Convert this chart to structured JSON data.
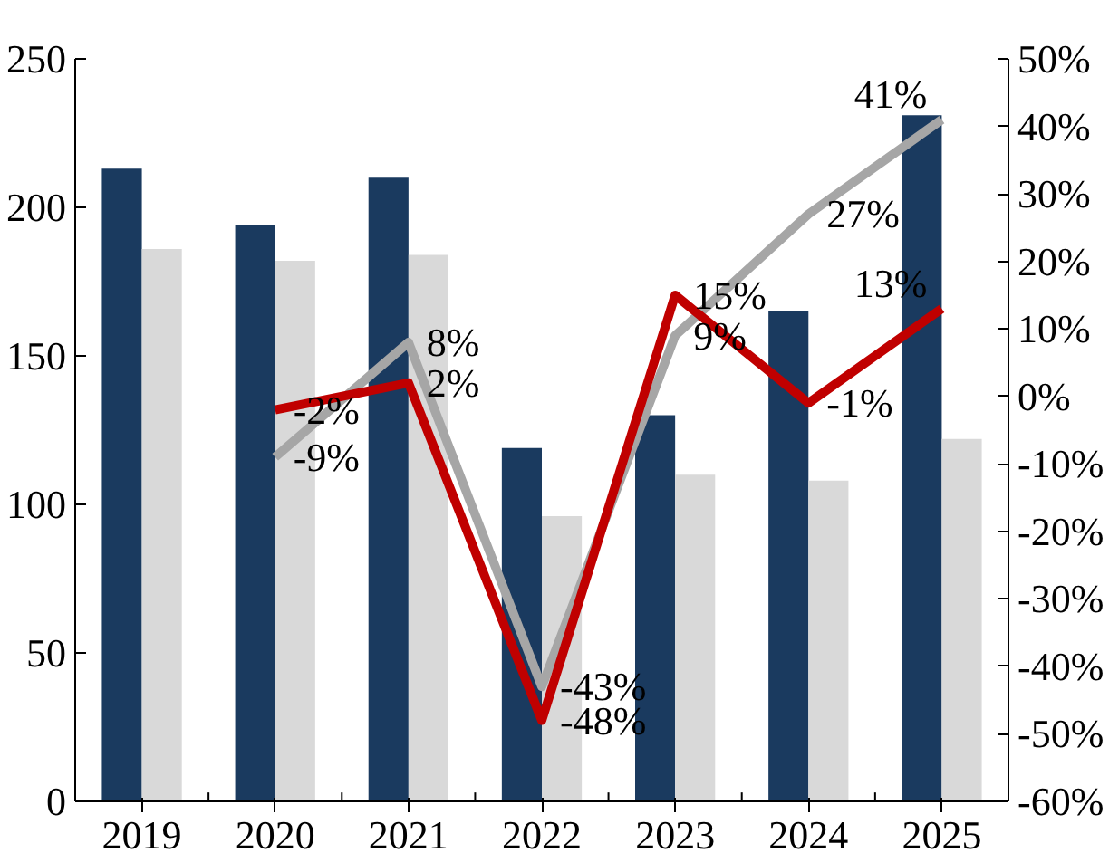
{
  "chart_data": {
    "type": "bar",
    "categories": [
      "2019",
      "2020",
      "2021",
      "2022",
      "2023",
      "2024",
      "2025"
    ],
    "series": [
      {
        "color": "#1a3a5f",
        "values": [
          213,
          194,
          210,
          119,
          130,
          165,
          231
        ]
      },
      {
        "color": "#d9d9d9",
        "values": [
          186,
          182,
          184,
          96,
          110,
          108,
          122
        ]
      },
      {
        "type": "line",
        "axis": "y2",
        "color": "#a6a6a6",
        "values": [
          null,
          -9,
          8,
          -43,
          9,
          27,
          41
        ],
        "value_labels": [
          null,
          "-9%",
          "8%",
          "-43%",
          "9%",
          "27%",
          "41%"
        ]
      },
      {
        "type": "line",
        "axis": "y2",
        "color": "#c00000",
        "values": [
          null,
          -2,
          2,
          -48,
          15,
          -1,
          13
        ],
        "value_labels": [
          null,
          "-2%",
          "2%",
          "-48%",
          "15%",
          "-1%",
          "13%"
        ]
      }
    ],
    "ylim": [
      0,
      250
    ],
    "yticks": [
      0,
      50,
      100,
      150,
      200,
      250
    ],
    "y2lim": [
      -60,
      50
    ],
    "y2ticks": [
      {
        "value": -60,
        "label": "-60%"
      },
      {
        "value": -50,
        "label": "-50%"
      },
      {
        "value": -40,
        "label": "-40%"
      },
      {
        "value": -30,
        "label": "-30%"
      },
      {
        "value": -20,
        "label": "-20%"
      },
      {
        "value": -10,
        "label": "-10%"
      },
      {
        "value": 0,
        "label": "0%"
      },
      {
        "value": 10,
        "label": "10%"
      },
      {
        "value": 20,
        "label": "20%"
      },
      {
        "value": 30,
        "label": "30%"
      },
      {
        "value": 40,
        "label": "40%"
      },
      {
        "value": 50,
        "label": "50%"
      }
    ],
    "grid": false,
    "marker": "none",
    "line_style": "solid"
  }
}
